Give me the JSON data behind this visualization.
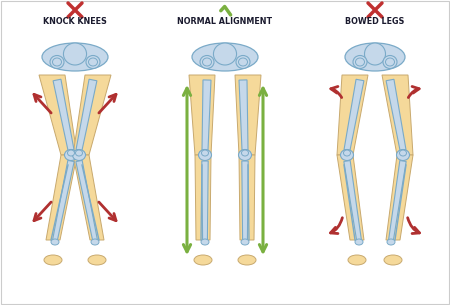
{
  "title1": "KNOCK KNEES",
  "title2": "NORMAL ALIGNMENT",
  "title3": "BOWED LEGS",
  "bg_color": "#ffffff",
  "skin_color": "#f5d99a",
  "skin_edge": "#c8a96e",
  "bone_fill": "#c5d8ea",
  "bone_outline": "#7aaac8",
  "bone_dark": "#4a7da0",
  "arrow_red": "#b03030",
  "arrow_green": "#7ab040",
  "cross_color": "#c03030",
  "check_color": "#7ab040",
  "text_color": "#1a1a2e",
  "figsize": [
    4.5,
    3.05
  ],
  "dpi": 100
}
